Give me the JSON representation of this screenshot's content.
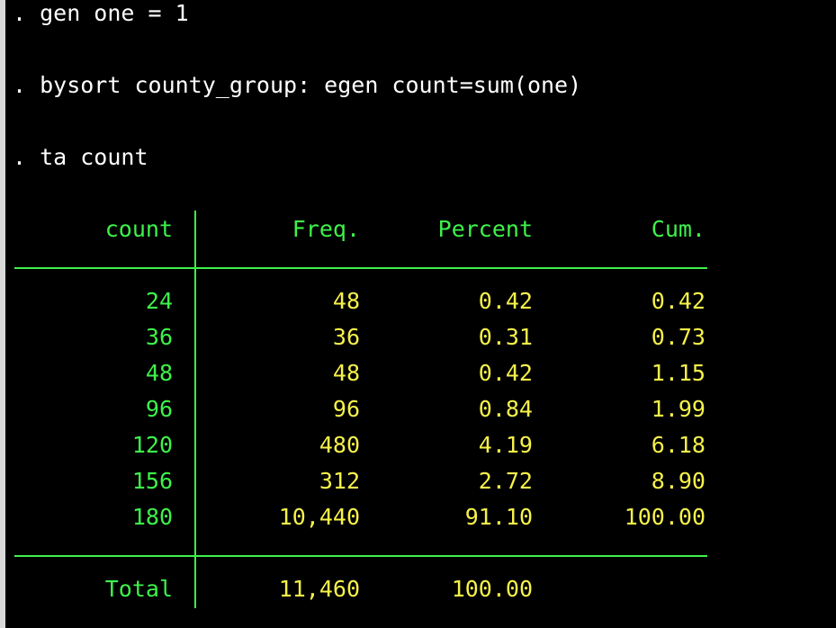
{
  "commands": [
    ". gen one = 1",
    ". bysort county_group: egen count=sum(one)",
    ". ta count"
  ],
  "table": {
    "headers": {
      "var": "count",
      "freq": "Freq.",
      "percent": "Percent",
      "cum": "Cum."
    },
    "rows": [
      {
        "value": "24",
        "freq": "48",
        "percent": "0.42",
        "cum": "0.42"
      },
      {
        "value": "36",
        "freq": "36",
        "percent": "0.31",
        "cum": "0.73"
      },
      {
        "value": "48",
        "freq": "48",
        "percent": "0.42",
        "cum": "1.15"
      },
      {
        "value": "96",
        "freq": "96",
        "percent": "0.84",
        "cum": "1.99"
      },
      {
        "value": "120",
        "freq": "480",
        "percent": "4.19",
        "cum": "6.18"
      },
      {
        "value": "156",
        "freq": "312",
        "percent": "2.72",
        "cum": "8.90"
      },
      {
        "value": "180",
        "freq": "10,440",
        "percent": "91.10",
        "cum": "100.00"
      }
    ],
    "total": {
      "label": "Total",
      "freq": "11,460",
      "percent": "100.00"
    }
  },
  "colors": {
    "background": "#000000",
    "command_text": "#ffffff",
    "label_text": "#3ef24a",
    "value_text": "#f6f24a",
    "rule_lines": "#3ef24a"
  }
}
